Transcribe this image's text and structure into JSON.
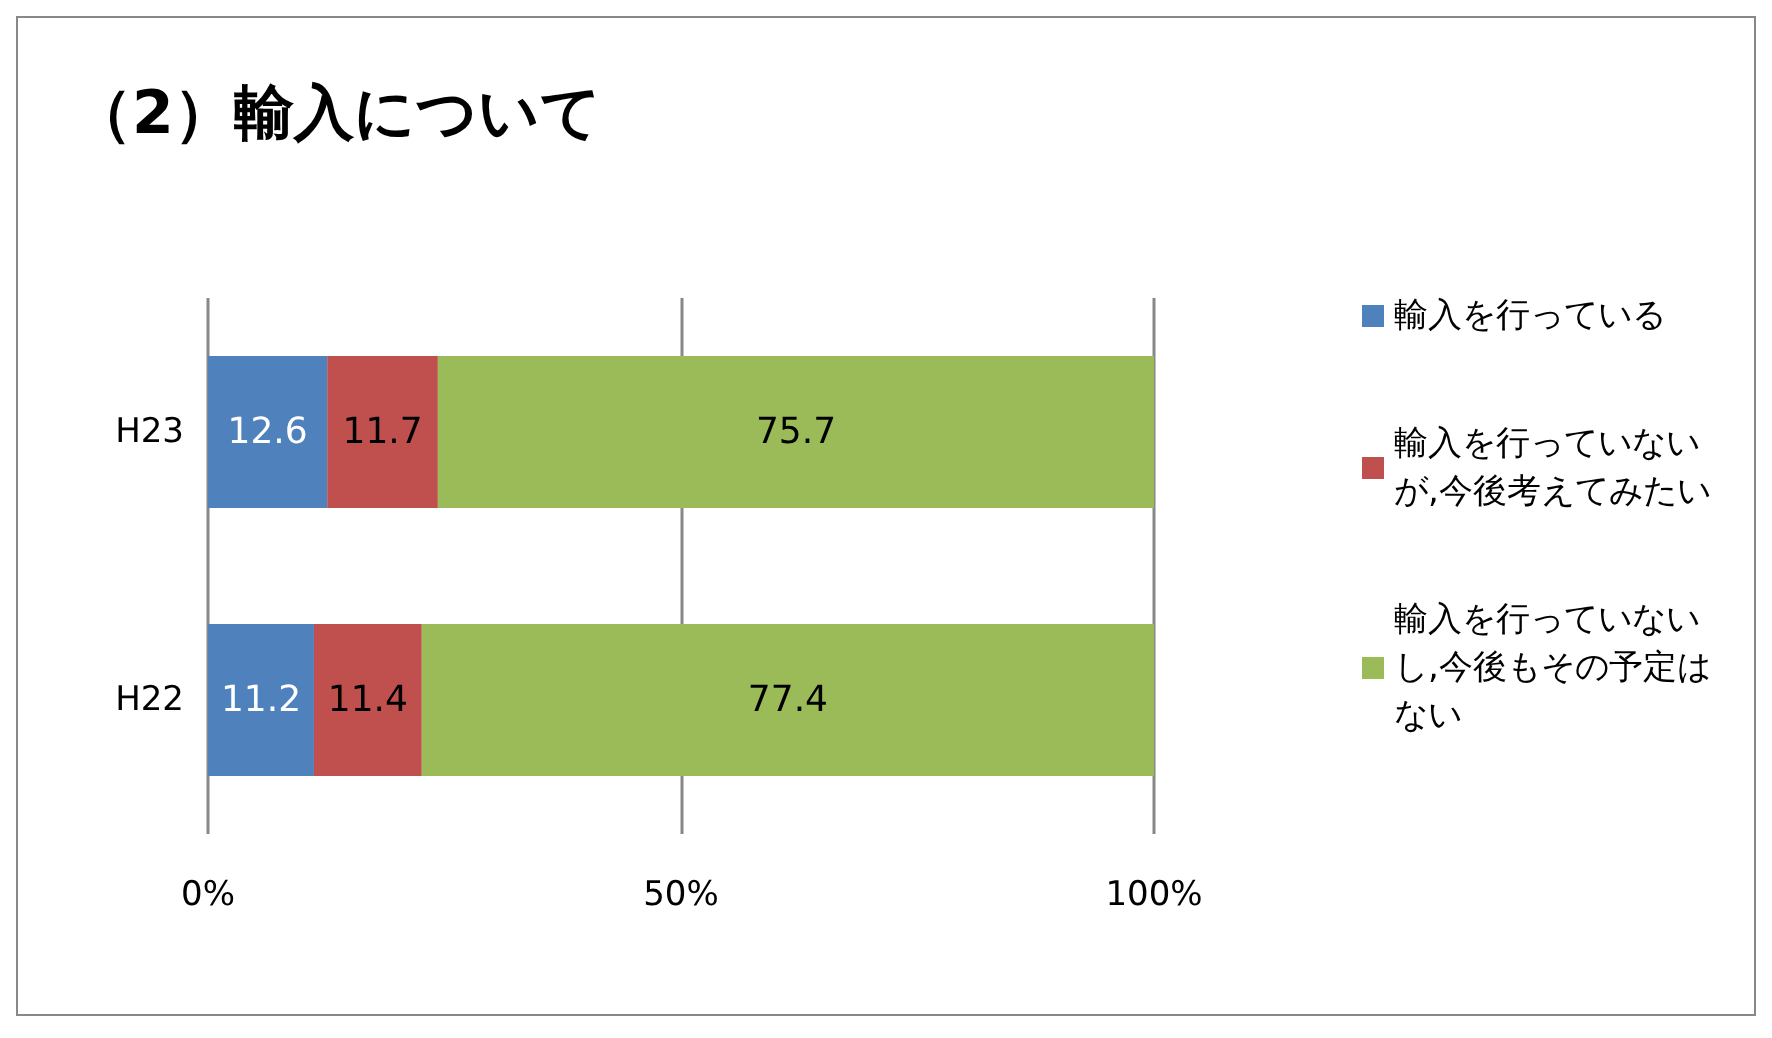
{
  "chart_data": {
    "type": "bar",
    "title": "（2）輸入について",
    "orientation": "horizontal",
    "stacked": true,
    "categories": [
      "H23",
      "H22"
    ],
    "series": [
      {
        "name": "輸入を行っている",
        "color": "#4f81bd",
        "values": [
          12.6,
          11.2
        ]
      },
      {
        "name": "輸入を行っていないが,今後考えてみたい",
        "color": "#c0504d",
        "values": [
          11.7,
          11.4
        ]
      },
      {
        "name": "輸入を行っていないし,今後もその予定はない",
        "color": "#9bbb59",
        "values": [
          75.7,
          77.4
        ]
      }
    ],
    "xlim": [
      0,
      100
    ],
    "xticks": [
      {
        "value": 0,
        "label": "0%"
      },
      {
        "value": 50,
        "label": "50%"
      },
      {
        "value": 100,
        "label": "100%"
      }
    ],
    "grid": "x",
    "legend": "right",
    "data_labels": true
  }
}
